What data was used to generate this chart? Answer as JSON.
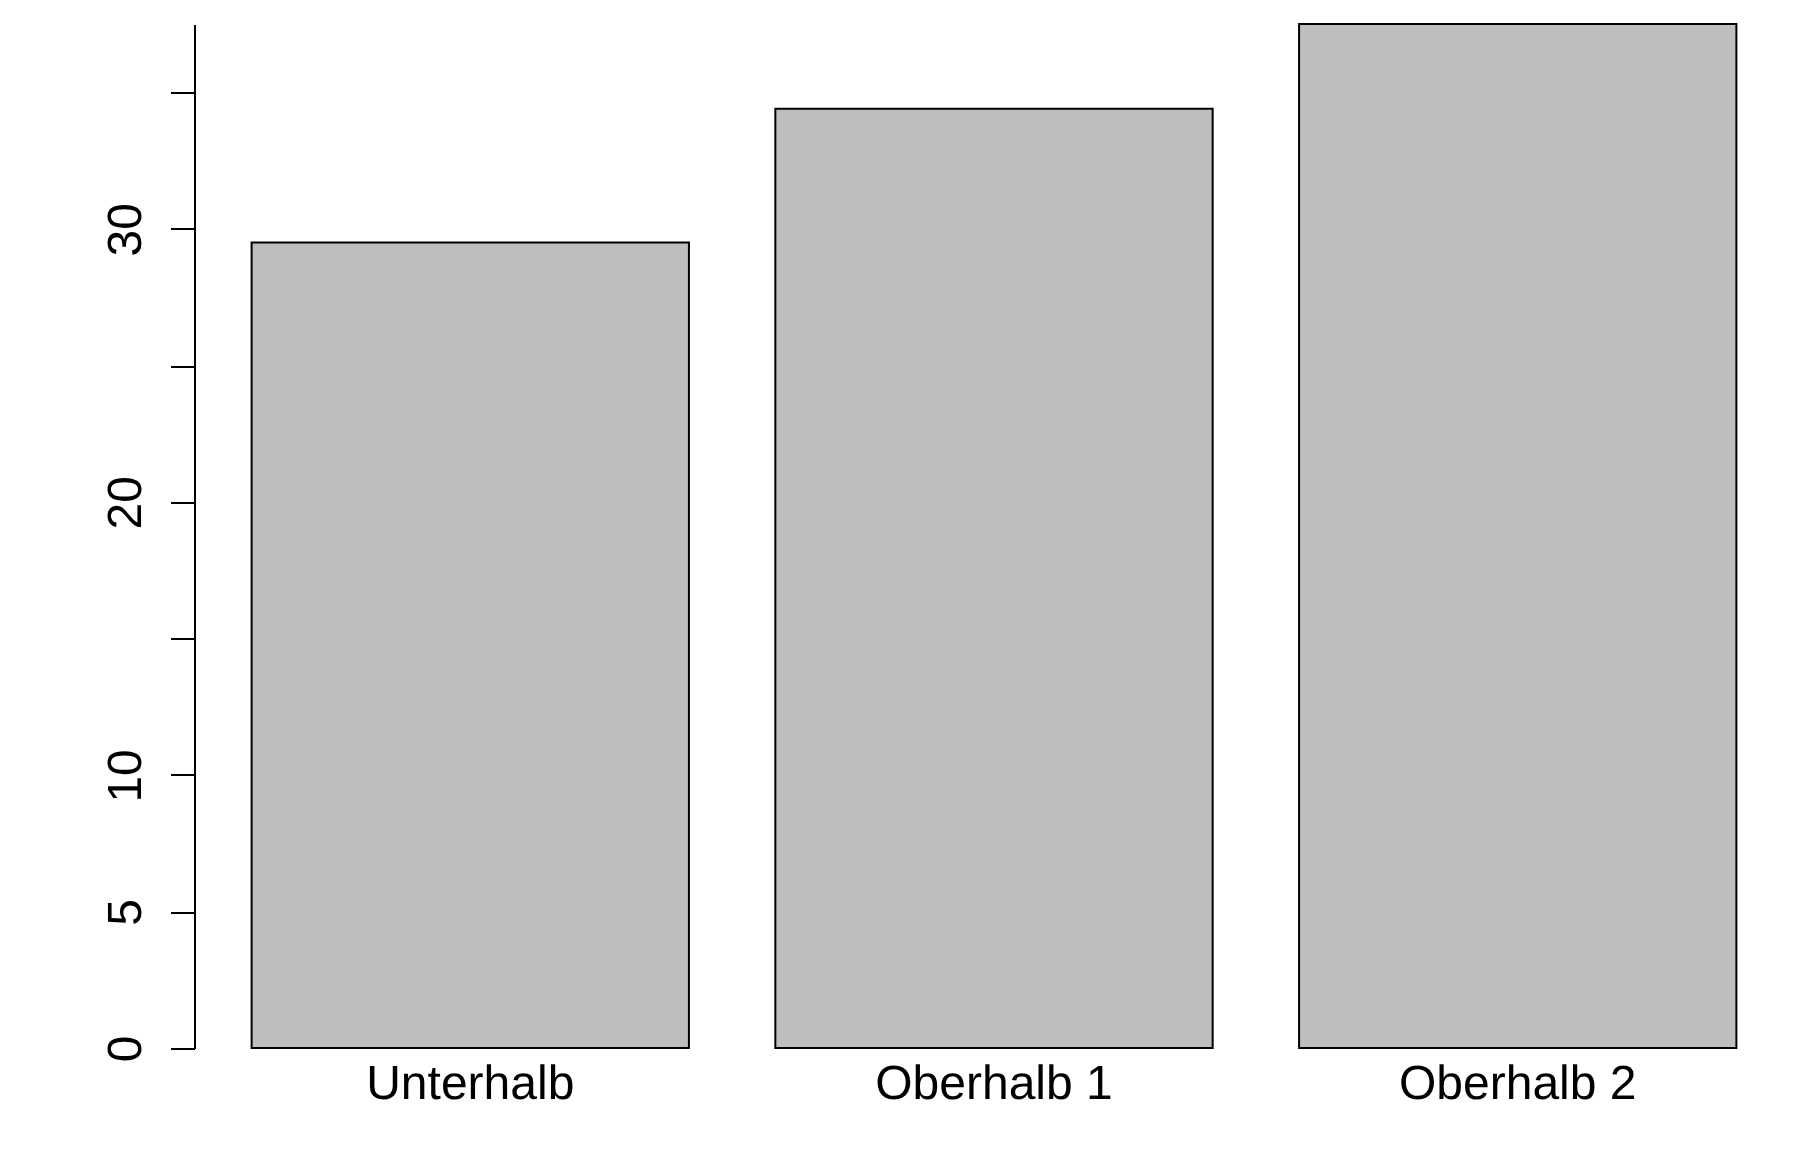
{
  "chart_data": {
    "type": "bar",
    "categories": [
      "Unterhalb",
      "Oberhalb 1",
      "Oberhalb 2"
    ],
    "values": [
      29.5,
      34.4,
      37.5
    ],
    "color": "#bebebe",
    "ylim": [
      0,
      37.5
    ],
    "yticks": [
      0,
      5,
      10,
      {
        "value": 15,
        "label": null
      },
      20,
      {
        "value": 25,
        "label": null
      },
      30,
      {
        "value": 35,
        "label": null
      }
    ],
    "grid": false
  }
}
